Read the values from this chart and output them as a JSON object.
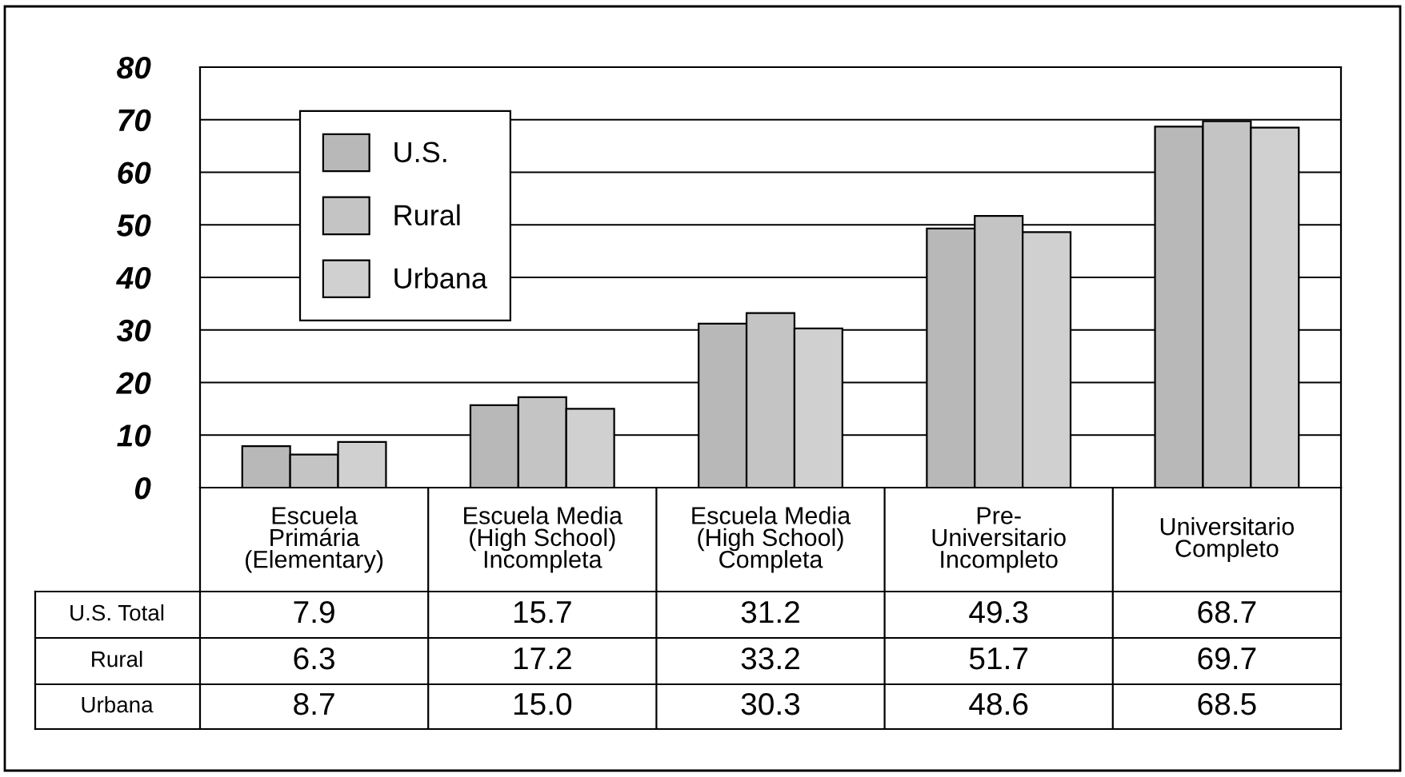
{
  "chart_data": {
    "type": "bar",
    "categories": [
      "Escuela\nPrimária\n(Elementary)",
      "Escuela Media\n(High School)\nIncompleta",
      "Escuela Media\n(High School)\nCompleta",
      "Pre-\nUniversitario\nIncompleto",
      "Universitario\nCompleto"
    ],
    "series": [
      {
        "name": "U.S.",
        "color": "#b8b8b8",
        "values": [
          7.9,
          15.7,
          31.2,
          49.3,
          68.7
        ]
      },
      {
        "name": "Rural",
        "color": "#c4c4c4",
        "values": [
          6.3,
          17.2,
          33.2,
          51.7,
          69.7
        ]
      },
      {
        "name": "Urbana",
        "color": "#d0d0d0",
        "values": [
          8.7,
          15.0,
          30.3,
          48.6,
          68.5
        ]
      }
    ],
    "value_labels": [
      [
        "7.9",
        "15.7",
        "31.2",
        "49.3",
        "68.7"
      ],
      [
        "6.3",
        "17.2",
        "33.2",
        "51.7",
        "69.7"
      ],
      [
        "8.7",
        "15.0",
        "30.3",
        "48.6",
        "68.5"
      ]
    ],
    "annotations": [
      "U.S. Total",
      "Rural",
      "Urbana"
    ],
    "ylim": [
      0,
      80
    ],
    "yticks": [
      0,
      10,
      20,
      30,
      40,
      50,
      60,
      70,
      80
    ],
    "grid": "y",
    "legend": "top left"
  }
}
